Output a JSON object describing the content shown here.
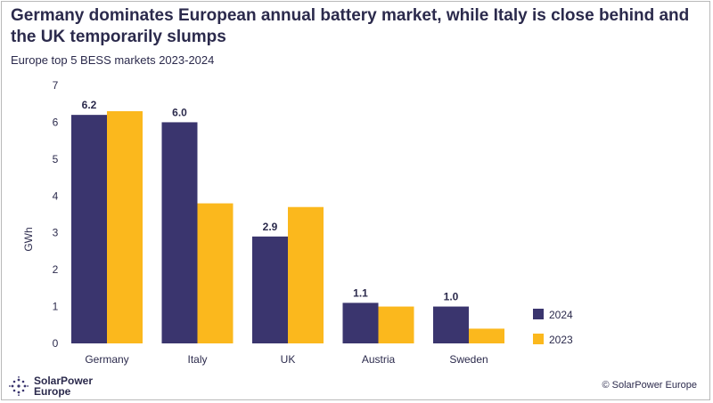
{
  "header": {
    "title": "Germany dominates European annual battery market, while Italy is close behind and the UK temporarily slumps",
    "subtitle": "Europe top 5 BESS markets 2023-2024"
  },
  "footer": {
    "brand_line1": "SolarPower",
    "brand_line2": "Europe",
    "copyright": "© SolarPower Europe"
  },
  "colors": {
    "series_2024": "#3a356e",
    "series_2023": "#fbb81d",
    "text": "#2b2a4c"
  },
  "chart_data": {
    "type": "bar",
    "title": "Germany dominates European annual battery market, while Italy is close behind and the UK temporarily slumps",
    "subtitle": "Europe top 5 BESS markets 2023-2024",
    "xlabel": "",
    "ylabel": "GWh",
    "ylim": [
      0,
      7
    ],
    "yticks": [
      0,
      1,
      2,
      3,
      4,
      5,
      6,
      7
    ],
    "grid": false,
    "legend_position": "bottom-right",
    "categories": [
      "Germany",
      "Italy",
      "UK",
      "Austria",
      "Sweden"
    ],
    "series": [
      {
        "name": "2024",
        "values": [
          6.2,
          6.0,
          2.9,
          1.1,
          1.0
        ],
        "labels": [
          "6.2",
          "6.0",
          "2.9",
          "1.1",
          "1.0"
        ]
      },
      {
        "name": "2023",
        "values": [
          6.3,
          3.8,
          3.7,
          1.0,
          0.4
        ]
      }
    ]
  }
}
